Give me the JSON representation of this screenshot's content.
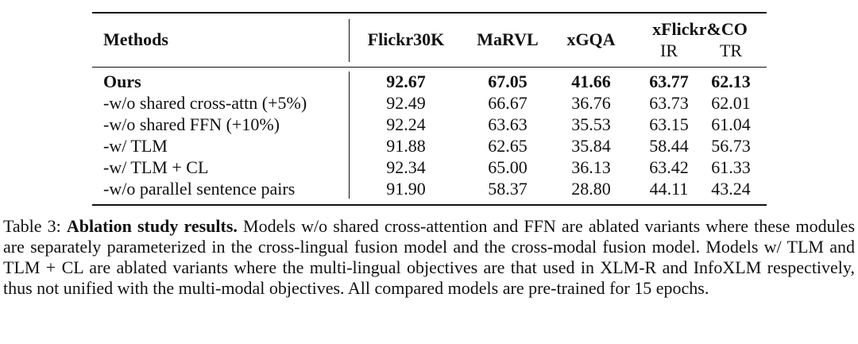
{
  "table": {
    "headers": {
      "methods": "Methods",
      "flickr": "Flickr30K",
      "marvl": "MaRVL",
      "xgqa": "xGQA",
      "xflickr": "xFlickr&CO",
      "ir": "IR",
      "tr": "TR"
    },
    "rows": [
      {
        "method": "Ours",
        "values": [
          "92.67",
          "67.05",
          "41.66",
          "63.77",
          "62.13"
        ],
        "bold": true
      },
      {
        "method": "-w/o shared cross-attn (+5%)",
        "values": [
          "92.49",
          "66.67",
          "36.76",
          "63.73",
          "62.01"
        ]
      },
      {
        "method": "-w/o shared FFN (+10%)",
        "values": [
          "92.24",
          "63.63",
          "35.53",
          "63.15",
          "61.04"
        ]
      },
      {
        "method": "-w/ TLM",
        "values": [
          "91.88",
          "62.65",
          "35.84",
          "58.44",
          "56.73"
        ]
      },
      {
        "method": "-w/ TLM + CL",
        "values": [
          "92.34",
          "65.00",
          "36.13",
          "63.42",
          "61.33"
        ]
      },
      {
        "method": "-w/o parallel sentence pairs",
        "values": [
          "91.90",
          "58.37",
          "28.80",
          "44.11",
          "43.24"
        ]
      }
    ]
  },
  "caption": {
    "prefix": "Table 3: ",
    "label": "Ablation study results.",
    "text": " Models w/o shared cross-attention and FFN are ablated variants where these modules are separately parameterized in the cross-lingual fusion model and the cross-modal fusion model. Models w/ TLM and TLM + CL are ablated variants where the multi-lingual objectives are that used in XLM-R and InfoXLM respectively, thus not unified with the multi-modal objectives. All compared models are pre-trained for 15 epochs."
  }
}
